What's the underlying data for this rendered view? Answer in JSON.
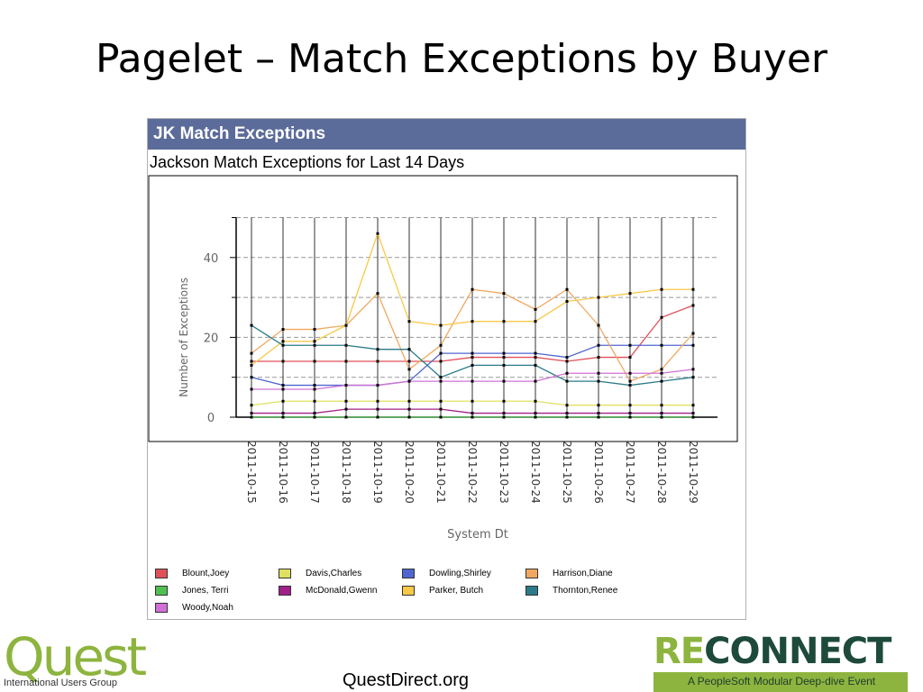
{
  "slide": {
    "title": "Pagelet – Match Exceptions by Buyer",
    "footer_url": "QuestDirect.org"
  },
  "pagelet": {
    "header": "JK Match Exceptions"
  },
  "logos": {
    "quest_word": "Quest",
    "quest_sub": "International Users Group",
    "reconnect_word_a": "RE",
    "reconnect_word_b": "CONNECT",
    "reconnect_sub": "A PeopleSoft Modular Deep-dive Event"
  },
  "chart_data": {
    "type": "line",
    "title": "Jackson Match Exceptions for Last 14 Days",
    "xlabel": "System Dt",
    "ylabel": "Number of Exceptions",
    "ylim": [
      0,
      50
    ],
    "yticks": [
      0,
      20,
      40
    ],
    "grid": true,
    "legend_position": "bottom",
    "x": [
      "2011-10-15",
      "2011-10-16",
      "2011-10-17",
      "2011-10-18",
      "2011-10-19",
      "2011-10-20",
      "2011-10-21",
      "2011-10-22",
      "2011-10-23",
      "2011-10-24",
      "2011-10-25",
      "2011-10-26",
      "2011-10-27",
      "2011-10-28",
      "2011-10-29"
    ],
    "series": [
      {
        "name": "Blount,Joey",
        "color": "#e0505a",
        "values": [
          14,
          14,
          14,
          14,
          14,
          14,
          14,
          15,
          15,
          15,
          14,
          15,
          15,
          25,
          28
        ]
      },
      {
        "name": "Davis,Charles",
        "color": "#e0e060",
        "values": [
          3,
          4,
          4,
          4,
          4,
          4,
          4,
          4,
          4,
          4,
          3,
          3,
          3,
          3,
          3
        ]
      },
      {
        "name": "Dowling,Shirley",
        "color": "#5066d0",
        "values": [
          10,
          8,
          8,
          8,
          8,
          9,
          16,
          16,
          16,
          16,
          15,
          18,
          18,
          18,
          18
        ]
      },
      {
        "name": "Harrison,Diane",
        "color": "#f0a860",
        "values": [
          16,
          22,
          22,
          23,
          31,
          12,
          18,
          32,
          31,
          27,
          32,
          23,
          9,
          12,
          21
        ]
      },
      {
        "name": "Jones, Terri",
        "color": "#50c050",
        "values": [
          0,
          0,
          0,
          0,
          0,
          0,
          0,
          0,
          0,
          0,
          0,
          0,
          0,
          0,
          0
        ]
      },
      {
        "name": "McDonald,Gwenn",
        "color": "#a0208a",
        "values": [
          1,
          1,
          1,
          2,
          2,
          2,
          2,
          1,
          1,
          1,
          1,
          1,
          1,
          1,
          1
        ]
      },
      {
        "name": "Parker, Butch",
        "color": "#f8c848",
        "values": [
          13,
          19,
          19,
          23,
          46,
          24,
          23,
          24,
          24,
          24,
          29,
          30,
          31,
          32,
          32
        ]
      },
      {
        "name": "Thornton,Renee",
        "color": "#2a7a8a",
        "values": [
          23,
          18,
          18,
          18,
          17,
          17,
          10,
          13,
          13,
          13,
          9,
          9,
          8,
          9,
          10
        ]
      },
      {
        "name": "Woody,Noah",
        "color": "#d070d8",
        "values": [
          7,
          7,
          7,
          8,
          8,
          9,
          9,
          9,
          9,
          9,
          11,
          11,
          11,
          11,
          12
        ]
      }
    ]
  }
}
